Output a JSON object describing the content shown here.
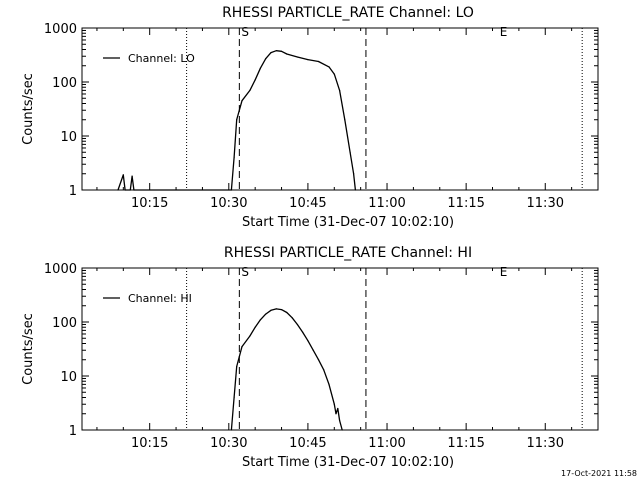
{
  "footer": {
    "date": "17-Oct-2021 11:58"
  },
  "chart_data": [
    {
      "type": "line",
      "scale_y": "log",
      "title": "RHESSI PARTICLE_RATE Channel: LO",
      "xlabel": "Start Time (31-Dec-07 10:02:10)",
      "ylabel": "Counts/sec",
      "xlim": [
        "10:02:10",
        "11:40:00"
      ],
      "ylim": [
        1,
        1000
      ],
      "x_ticks": [
        "10:15",
        "10:30",
        "10:45",
        "11:00",
        "11:15",
        "11:30"
      ],
      "y_ticks": [
        "1",
        "10",
        "100",
        "1000"
      ],
      "legend": {
        "position": "top-left",
        "entries": [
          "Channel: LO"
        ]
      },
      "dotted_lines": [
        "10:22",
        "11:37"
      ],
      "dashed_lines": [
        "10:32",
        "10:56"
      ],
      "markers": [
        {
          "label": "S",
          "x": "10:32"
        },
        {
          "label": "E",
          "x": "11:21"
        }
      ],
      "series": [
        {
          "name": "Channel: LO",
          "points": [
            [
              "10:09:00",
              1
            ],
            [
              "10:10:00",
              1.9
            ],
            [
              "10:10:20",
              1
            ],
            [
              "10:11:20",
              1
            ],
            [
              "10:11:40",
              1.8
            ],
            [
              "10:12:00",
              1
            ],
            [
              "10:30:30",
              1
            ],
            [
              "10:31:00",
              4
            ],
            [
              "10:31:30",
              20
            ],
            [
              "10:32:30",
              45
            ],
            [
              "10:34:00",
              70
            ],
            [
              "10:35:00",
              110
            ],
            [
              "10:36:00",
              180
            ],
            [
              "10:37:00",
              270
            ],
            [
              "10:38:00",
              350
            ],
            [
              "10:39:00",
              380
            ],
            [
              "10:40:00",
              370
            ],
            [
              "10:41:00",
              330
            ],
            [
              "10:43:00",
              290
            ],
            [
              "10:45:00",
              260
            ],
            [
              "10:47:00",
              240
            ],
            [
              "10:49:00",
              190
            ],
            [
              "10:50:00",
              140
            ],
            [
              "10:51:00",
              70
            ],
            [
              "10:52:00",
              20
            ],
            [
              "10:53:00",
              5
            ],
            [
              "10:53:40",
              2
            ],
            [
              "10:54:00",
              1
            ]
          ]
        }
      ]
    },
    {
      "type": "line",
      "scale_y": "log",
      "title": "RHESSI PARTICLE_RATE Channel: HI",
      "xlabel": "Start Time (31-Dec-07 10:02:10)",
      "ylabel": "Counts/sec",
      "xlim": [
        "10:02:10",
        "11:40:00"
      ],
      "ylim": [
        1,
        1000
      ],
      "x_ticks": [
        "10:15",
        "10:30",
        "10:45",
        "11:00",
        "11:15",
        "11:30"
      ],
      "y_ticks": [
        "1",
        "10",
        "100",
        "1000"
      ],
      "legend": {
        "position": "top-left",
        "entries": [
          "Channel: HI"
        ]
      },
      "dotted_lines": [
        "10:22",
        "11:37"
      ],
      "dashed_lines": [
        "10:32",
        "10:56"
      ],
      "markers": [
        {
          "label": "S",
          "x": "10:32"
        },
        {
          "label": "E",
          "x": "11:21"
        }
      ],
      "series": [
        {
          "name": "Channel: HI",
          "points": [
            [
              "10:30:30",
              1
            ],
            [
              "10:31:00",
              4
            ],
            [
              "10:31:30",
              15
            ],
            [
              "10:32:30",
              35
            ],
            [
              "10:34:00",
              55
            ],
            [
              "10:35:00",
              80
            ],
            [
              "10:36:00",
              110
            ],
            [
              "10:37:00",
              140
            ],
            [
              "10:38:00",
              165
            ],
            [
              "10:39:00",
              175
            ],
            [
              "10:40:00",
              170
            ],
            [
              "10:41:00",
              150
            ],
            [
              "10:42:00",
              120
            ],
            [
              "10:43:00",
              90
            ],
            [
              "10:44:00",
              65
            ],
            [
              "10:45:00",
              45
            ],
            [
              "10:46:00",
              30
            ],
            [
              "10:47:00",
              20
            ],
            [
              "10:48:00",
              13
            ],
            [
              "10:49:00",
              7
            ],
            [
              "10:50:00",
              3
            ],
            [
              "10:50:20",
              2
            ],
            [
              "10:50:40",
              2.5
            ],
            [
              "10:51:00",
              1.5
            ],
            [
              "10:51:30",
              1
            ]
          ]
        }
      ]
    }
  ]
}
